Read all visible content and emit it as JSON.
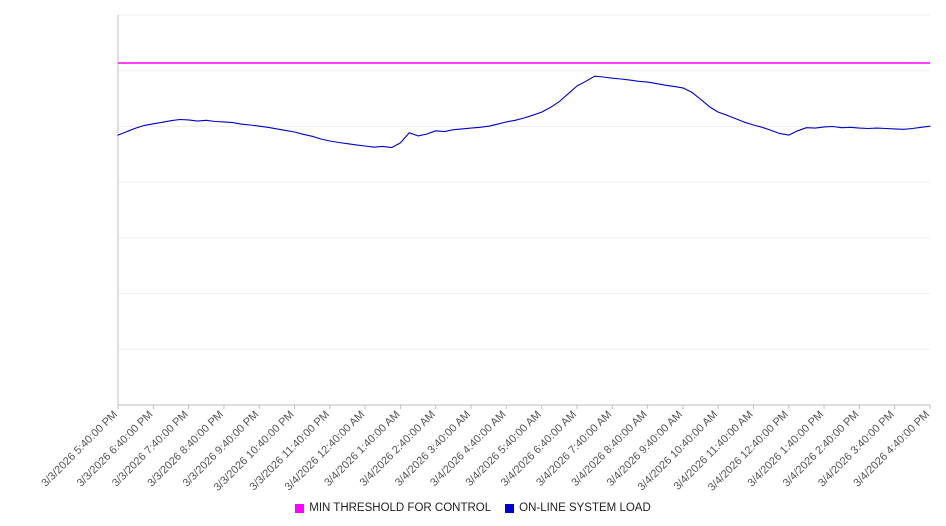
{
  "chart_data": {
    "type": "line",
    "title": "",
    "xlabel": "",
    "ylabel": "",
    "ylim": [
      0,
      100
    ],
    "grid": true,
    "grid_divisions": 7,
    "legend_position": "bottom",
    "x_labels": [
      "3/3/2026 5:40:00 PM",
      "3/3/2026 6:40:00 PM",
      "3/3/2026 7:40:00 PM",
      "3/3/2026 8:40:00 PM",
      "3/3/2026 9:40:00 PM",
      "3/3/2026 10:40:00 PM",
      "3/3/2026 11:40:00 PM",
      "3/4/2026 12:40:00 AM",
      "3/4/2026 1:40:00 AM",
      "3/4/2026 2:40:00 AM",
      "3/4/2026 3:40:00 AM",
      "3/4/2026 4:40:00 AM",
      "3/4/2026 5:40:00 AM",
      "3/4/2026 6:40:00 AM",
      "3/4/2026 7:40:00 AM",
      "3/4/2026 8:40:00 AM",
      "3/4/2026 9:40:00 AM",
      "3/4/2026 10:40:00 AM",
      "3/4/2026 11:40:00 AM",
      "3/4/2026 12:40:00 PM",
      "3/4/2026 1:40:00 PM",
      "3/4/2026 2:40:00 PM",
      "3/4/2026 3:40:00 PM",
      "3/4/2026 4:40:00 PM"
    ],
    "points_per_label": 4,
    "series": [
      {
        "name": "MIN THRESHOLD FOR CONTROL",
        "color": "#ff00ff",
        "style": "constant",
        "value": 87.7
      },
      {
        "name": "ON-LINE SYSTEM LOAD",
        "color": "#0000cc",
        "style": "line",
        "values": [
          69.2,
          70.1,
          71.0,
          71.7,
          72.1,
          72.5,
          72.9,
          73.2,
          73.1,
          72.8,
          73.0,
          72.7,
          72.6,
          72.4,
          72.0,
          71.8,
          71.5,
          71.2,
          70.8,
          70.4,
          70.0,
          69.4,
          68.9,
          68.2,
          67.7,
          67.3,
          67.0,
          66.7,
          66.4,
          66.1,
          66.3,
          66.0,
          67.2,
          69.8,
          69.0,
          69.5,
          70.3,
          70.1,
          70.6,
          70.8,
          71.0,
          71.2,
          71.5,
          72.0,
          72.6,
          73.0,
          73.6,
          74.3,
          75.1,
          76.3,
          77.8,
          79.8,
          81.8,
          83.0,
          84.3,
          84.1,
          83.8,
          83.6,
          83.3,
          83.0,
          82.8,
          82.4,
          82.0,
          81.7,
          81.3,
          80.2,
          78.4,
          76.5,
          75.1,
          74.3,
          73.4,
          72.5,
          71.8,
          71.2,
          70.4,
          69.6,
          69.2,
          70.3,
          71.1,
          71.0,
          71.3,
          71.4,
          71.1,
          71.2,
          71.0,
          70.9,
          71.0,
          70.9,
          70.8,
          70.7,
          70.9,
          71.2,
          71.5
        ]
      }
    ],
    "colors": {
      "gridline": "#efefef",
      "axis": "#bfbfbf",
      "tick_label": "#555555",
      "background": "#ffffff"
    }
  }
}
